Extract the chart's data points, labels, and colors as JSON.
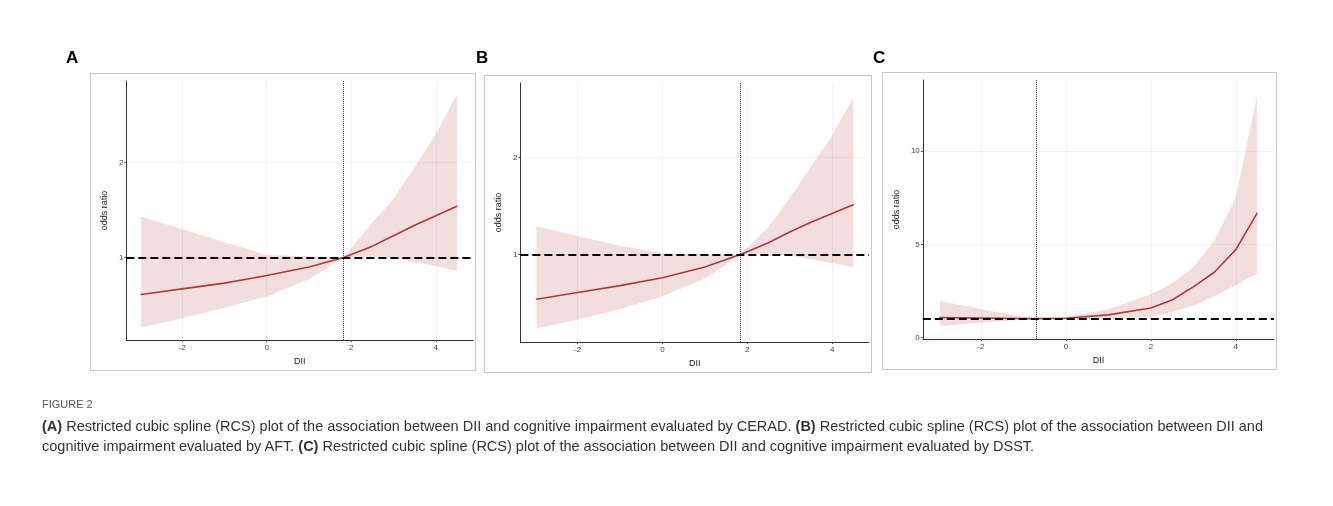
{
  "chart_data": [
    {
      "type": "line",
      "title": "A",
      "xlabel": "DII",
      "ylabel": "odds ratio",
      "xlim": [
        -3.32,
        4.88
      ],
      "xticks": [
        -2,
        0,
        2,
        4
      ],
      "ylim": [
        0.13,
        2.86
      ],
      "yticks": [
        1,
        2
      ],
      "grid": true,
      "marker": "none",
      "line_style": "solid",
      "x": [
        -2.97,
        -2,
        -1,
        0,
        1,
        1.82,
        2.5,
        3,
        3.5,
        4,
        4.5
      ],
      "series": [
        {
          "color": "#b03a3a",
          "values": [
            0.61,
            0.67,
            0.73,
            0.81,
            0.9,
            1.0,
            1.12,
            1.23,
            1.34,
            1.44,
            1.54
          ],
          "lower": [
            0.26,
            0.36,
            0.47,
            0.59,
            0.77,
            1.0,
            1.01,
            0.99,
            0.95,
            0.91,
            0.86
          ],
          "upper": [
            1.43,
            1.3,
            1.16,
            1.03,
            1.01,
            1.0,
            1.37,
            1.62,
            1.95,
            2.3,
            2.72
          ]
        }
      ],
      "ref_lines": [
        {
          "axis": "x",
          "value": 1.82,
          "line_style": "dotted",
          "color": "#333333"
        },
        {
          "axis": "y",
          "value": 1,
          "line_style": "dashed",
          "color": "#000000"
        }
      ],
      "annotations": [
        "FIGURE 2",
        "(A) Restricted cubic spline (RCS) plot of the association between DII and cognitive impairment evaluated by CERAD. (B) Restricted cubic spline (RCS) plot of the association between DII and cognitive impairment evaluated by AFT. (C) Restricted cubic spline (RCS) plot of the association between DII and cognitive impairment evaluated by DSST."
      ]
    },
    {
      "type": "line",
      "title": "B",
      "xlabel": "DII",
      "ylabel": "odds ratio",
      "xlim": [
        -3.35,
        4.87
      ],
      "xticks": [
        -2,
        0,
        2,
        4
      ],
      "ylim": [
        0.1,
        2.76
      ],
      "yticks": [
        1,
        2
      ],
      "grid": true,
      "marker": "none",
      "line_style": "solid",
      "x": [
        -2.97,
        -2,
        -1,
        0,
        1,
        1.84,
        2.5,
        3,
        3.5,
        4,
        4.5
      ],
      "series": [
        {
          "color": "#b03a3a",
          "values": [
            0.54,
            0.61,
            0.68,
            0.76,
            0.87,
            1.0,
            1.12,
            1.23,
            1.33,
            1.42,
            1.51
          ],
          "lower": [
            0.24,
            0.33,
            0.44,
            0.57,
            0.75,
            1.0,
            1.01,
            0.99,
            0.95,
            0.91,
            0.87
          ],
          "upper": [
            1.29,
            1.19,
            1.09,
            1.01,
            1.0,
            1.0,
            1.28,
            1.58,
            1.9,
            2.22,
            2.61
          ]
        }
      ],
      "ref_lines": [
        {
          "axis": "x",
          "value": 1.84,
          "line_style": "dotted",
          "color": "#333333"
        },
        {
          "axis": "y",
          "value": 1,
          "line_style": "dashed",
          "color": "#000000"
        }
      ]
    },
    {
      "type": "line",
      "title": "C",
      "xlabel": "DII",
      "ylabel": "odds ratio",
      "xlim": [
        -3.37,
        4.9
      ],
      "xticks": [
        -2,
        0,
        2,
        4
      ],
      "ylim": [
        -0.1,
        13.8
      ],
      "yticks": [
        0,
        5,
        10
      ],
      "grid": true,
      "marker": "none",
      "line_style": "solid",
      "x": [
        -2.97,
        -2,
        -1,
        -0.71,
        0,
        1,
        2,
        2.5,
        3,
        3.5,
        4,
        4.5
      ],
      "series": [
        {
          "color": "#b03a3a",
          "values": [
            1.06,
            1.03,
            1.0,
            1.0,
            1.02,
            1.2,
            1.57,
            2.0,
            2.7,
            3.5,
            4.7,
            6.64
          ],
          "lower": [
            0.6,
            0.78,
            0.95,
            1.0,
            0.95,
            0.98,
            1.1,
            1.35,
            1.7,
            2.2,
            2.8,
            3.4
          ],
          "upper": [
            1.96,
            1.5,
            1.1,
            1.0,
            1.1,
            1.5,
            2.3,
            2.9,
            3.75,
            5.2,
            7.5,
            13.0
          ]
        }
      ],
      "ref_lines": [
        {
          "axis": "x",
          "value": -0.71,
          "line_style": "dotted",
          "color": "#333333"
        },
        {
          "axis": "y",
          "value": 1,
          "line_style": "dashed",
          "color": "#000000"
        }
      ]
    }
  ]
}
